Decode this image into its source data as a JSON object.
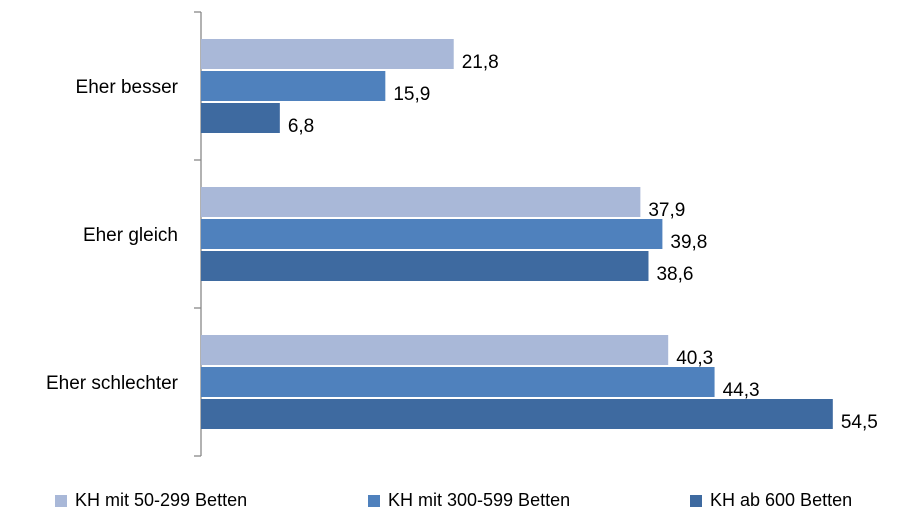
{
  "chart_data": {
    "type": "bar",
    "orientation": "horizontal",
    "categories": [
      "Eher besser",
      "Eher gleich",
      "Eher schlechter"
    ],
    "series": [
      {
        "name": "KH mit 50-299 Betten",
        "values": [
          21.8,
          37.9,
          40.3
        ],
        "labels": [
          "21,8",
          "37,9",
          "40,3"
        ],
        "color": "#a9b8d8"
      },
      {
        "name": "KH mit 300-599 Betten",
        "values": [
          15.9,
          39.8,
          44.3
        ],
        "labels": [
          "15,9",
          "39,8",
          "44,3"
        ],
        "color": "#4f81bd"
      },
      {
        "name": "KH ab 600 Betten",
        "values": [
          6.8,
          38.6,
          54.5
        ],
        "labels": [
          "6,8",
          "38,6",
          "54,5"
        ],
        "color": "#3e6aa0"
      }
    ],
    "xlim": [
      0,
      56.5
    ],
    "grid": false,
    "legend_position": "bottom",
    "title": "",
    "xlabel": "",
    "ylabel": ""
  }
}
